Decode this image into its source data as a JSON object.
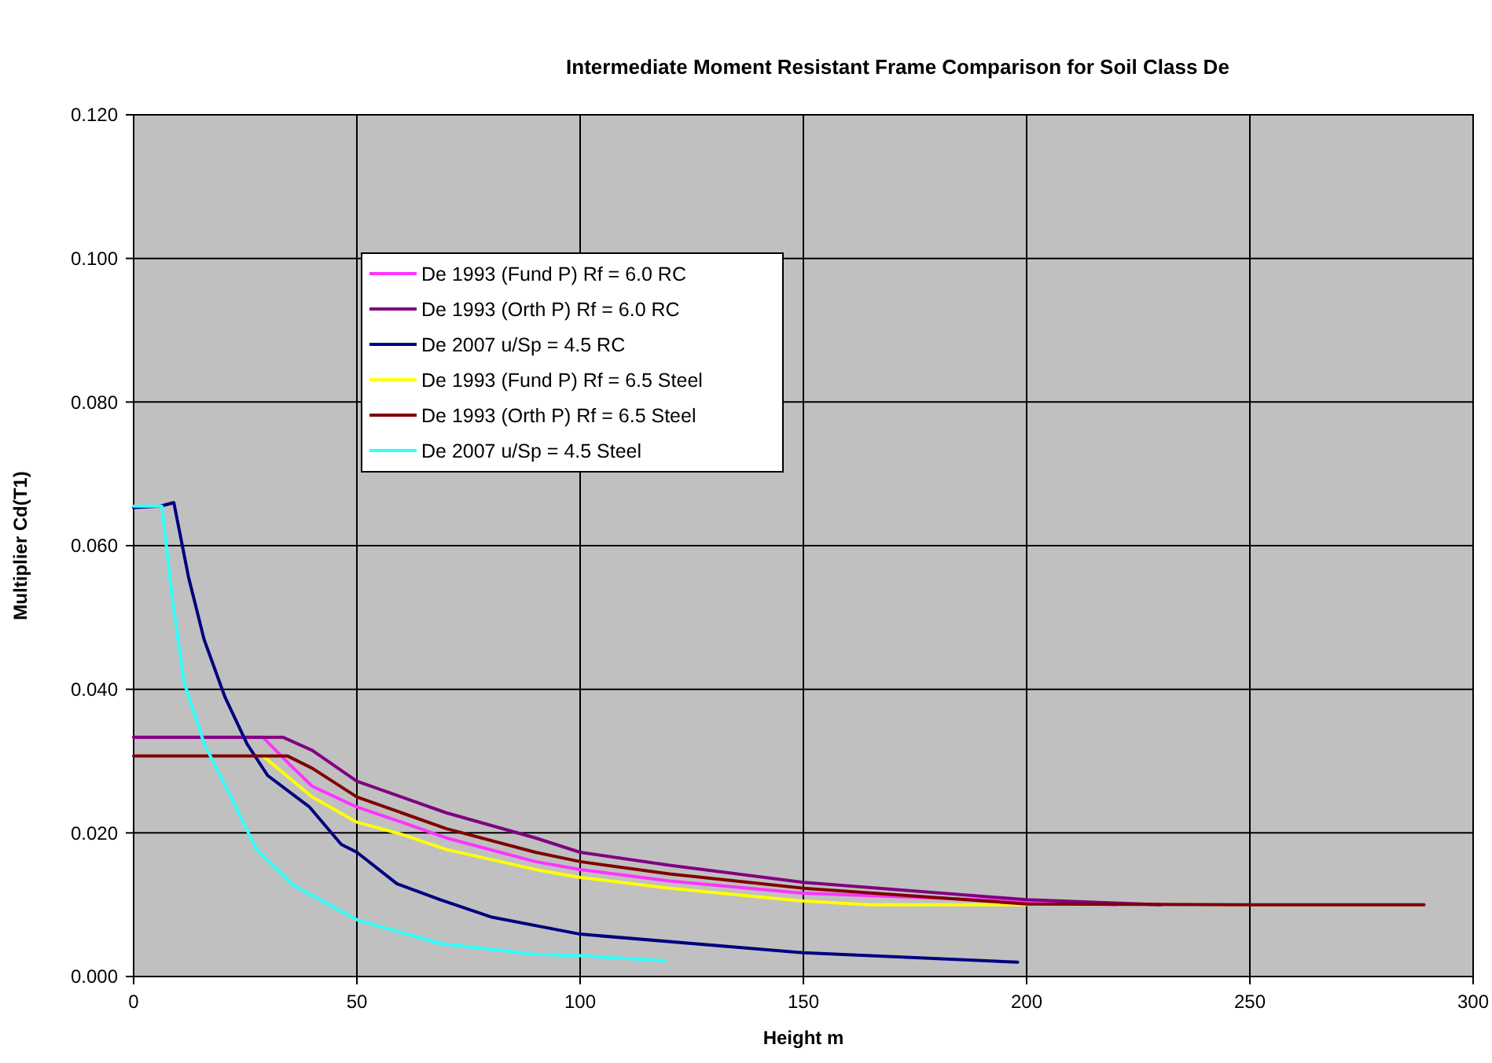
{
  "chart_data": {
    "type": "line",
    "title": "Intermediate Moment Resistant Frame Comparison for Soil Class De",
    "xlabel": "Height m",
    "ylabel": "Multiplier Cd(T1)",
    "xlim": [
      0,
      300
    ],
    "xticks": [
      0,
      50,
      100,
      150,
      200,
      250,
      300
    ],
    "ylim": [
      0,
      0.12
    ],
    "yticks": [
      {
        "value": 0,
        "label": "0.000"
      },
      {
        "value": 0.02,
        "label": "0.020"
      },
      {
        "value": 0.04,
        "label": "0.040"
      },
      {
        "value": 0.06,
        "label": "0.060"
      },
      {
        "value": 0.08,
        "label": "0.080"
      },
      {
        "value": 0.1,
        "label": "0.100"
      },
      {
        "value": 0.12,
        "label": "0.120"
      }
    ],
    "grid": true,
    "legend": "top left",
    "marker": "none",
    "line_style": "solid",
    "series": [
      {
        "name": "De 1993 (Fund P) Rf = 6.0 RC",
        "color": "#ff33ff",
        "x": [
          0,
          29,
          35,
          40,
          50,
          60,
          70,
          90,
          100,
          120,
          150,
          220
        ],
        "values": [
          0.0333,
          0.0333,
          0.0295,
          0.0265,
          0.0236,
          0.0215,
          0.0193,
          0.016,
          0.0149,
          0.0133,
          0.0116,
          0.01
        ]
      },
      {
        "name": "De 1993 (Orth P) Rf = 6.0 RC",
        "color": "#800080",
        "x": [
          0,
          33.5,
          40,
          50,
          60,
          70,
          90,
          100,
          120,
          150,
          200,
          230
        ],
        "values": [
          0.0333,
          0.0333,
          0.0315,
          0.0272,
          0.025,
          0.0228,
          0.0193,
          0.0173,
          0.0155,
          0.0131,
          0.0107,
          0.01
        ]
      },
      {
        "name": "De 2007 u/Sp = 4.5 RC",
        "color": "#000080",
        "x": [
          0,
          6,
          9,
          12.3,
          15.8,
          20.4,
          25.4,
          30,
          39.4,
          46.5,
          50,
          59,
          68.7,
          80,
          100,
          150,
          198
        ],
        "values": [
          0.0653,
          0.0655,
          0.066,
          0.0556,
          0.0469,
          0.039,
          0.0324,
          0.028,
          0.0236,
          0.0184,
          0.0173,
          0.0129,
          0.0107,
          0.0083,
          0.0059,
          0.0033,
          0.002
        ]
      },
      {
        "name": "De 1993 (Fund P) Rf = 6.5 Steel",
        "color": "#ffff00",
        "x": [
          29,
          40,
          50,
          60,
          70,
          90,
          100,
          120,
          150,
          165,
          200
        ],
        "values": [
          0.0307,
          0.025,
          0.0215,
          0.0198,
          0.0177,
          0.0149,
          0.0138,
          0.0123,
          0.0105,
          0.01,
          0.01
        ]
      },
      {
        "name": "De 1993 (Orth P) Rf = 6.5 Steel",
        "color": "#800000",
        "x": [
          0,
          34.5,
          40,
          50,
          60,
          70,
          90,
          100,
          120,
          150,
          200,
          250,
          289
        ],
        "values": [
          0.0307,
          0.0307,
          0.029,
          0.025,
          0.0228,
          0.0206,
          0.0173,
          0.016,
          0.0143,
          0.0123,
          0.0101,
          0.01,
          0.01
        ]
      },
      {
        "name": "De 2007 u/Sp = 4.5 Steel",
        "color": "#33ffff",
        "x": [
          0,
          6.3,
          8.8,
          11.3,
          15.8,
          21.8,
          27.5,
          35.8,
          50,
          68.7,
          89.8,
          100,
          119
        ],
        "values": [
          0.0655,
          0.0655,
          0.052,
          0.041,
          0.0324,
          0.025,
          0.0177,
          0.0127,
          0.0079,
          0.0046,
          0.0031,
          0.0029,
          0.0022
        ]
      }
    ]
  }
}
